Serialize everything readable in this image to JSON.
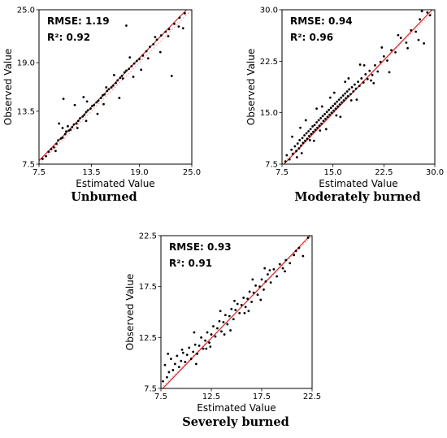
{
  "captions": [
    "Unburned",
    "Moderately burned",
    "Severely burned"
  ],
  "colors": {
    "points": "#000000",
    "fit_line": "#d62728",
    "identity_line": "#e79a9a"
  },
  "chart_data": [
    {
      "type": "scatter",
      "caption": "Unburned",
      "xlabel": "Estimated Value",
      "ylabel": "Observed Value",
      "xlim": [
        7.5,
        25.0
      ],
      "ylim": [
        7.5,
        25.0
      ],
      "ticks": [
        "7.5",
        "13.5",
        "19.0",
        "25.0"
      ],
      "stats": {
        "rmse": "RMSE: 1.19",
        "r2": "R²: 0.92"
      },
      "fit_line": [
        [
          7.5,
          7.9
        ],
        [
          25.0,
          25.6
        ]
      ],
      "identity_line": [
        [
          7.5,
          7.5
        ],
        [
          25.0,
          25.0
        ]
      ],
      "points": [
        [
          7.9,
          8.1
        ],
        [
          8.3,
          8.4
        ],
        [
          8.6,
          8.9
        ],
        [
          8.9,
          9.2
        ],
        [
          9.2,
          9.4
        ],
        [
          9.5,
          9.8
        ],
        [
          9.7,
          10.2
        ],
        [
          10.0,
          10.4
        ],
        [
          10.2,
          10.5
        ],
        [
          10.5,
          10.9
        ],
        [
          10.6,
          11.2
        ],
        [
          10.9,
          11.3
        ],
        [
          10.2,
          11.6
        ],
        [
          10.8,
          11.8
        ],
        [
          11.1,
          11.4
        ],
        [
          11.3,
          11.7
        ],
        [
          11.5,
          12.0
        ],
        [
          11.8,
          12.1
        ],
        [
          12.0,
          12.4
        ],
        [
          12.2,
          12.7
        ],
        [
          12.5,
          12.9
        ],
        [
          12.7,
          13.1
        ],
        [
          12.9,
          13.4
        ],
        [
          13.1,
          13.6
        ],
        [
          13.4,
          13.8
        ],
        [
          13.6,
          14.1
        ],
        [
          13.8,
          14.2
        ],
        [
          14.1,
          14.5
        ],
        [
          14.3,
          14.7
        ],
        [
          14.6,
          15.0
        ],
        [
          14.8,
          15.3
        ],
        [
          15.0,
          15.4
        ],
        [
          15.3,
          15.8
        ],
        [
          15.5,
          16.0
        ],
        [
          15.8,
          16.2
        ],
        [
          16.0,
          16.4
        ],
        [
          16.3,
          16.7
        ],
        [
          16.5,
          17.0
        ],
        [
          16.8,
          17.3
        ],
        [
          17.0,
          17.5
        ],
        [
          17.3,
          17.9
        ],
        [
          17.5,
          18.1
        ],
        [
          17.8,
          18.3
        ],
        [
          18.1,
          18.6
        ],
        [
          18.4,
          18.9
        ],
        [
          18.7,
          19.2
        ],
        [
          19.0,
          19.4
        ],
        [
          19.4,
          19.8
        ],
        [
          19.8,
          20.3
        ],
        [
          20.2,
          20.8
        ],
        [
          20.6,
          21.1
        ],
        [
          21.0,
          21.6
        ],
        [
          21.5,
          22.1
        ],
        [
          22.0,
          22.5
        ],
        [
          22.4,
          22.8
        ],
        [
          23.0,
          23.4
        ],
        [
          23.6,
          24.1
        ],
        [
          24.2,
          24.6
        ],
        [
          9.8,
          12.1
        ],
        [
          10.3,
          14.9
        ],
        [
          11.6,
          14.2
        ],
        [
          12.6,
          15.1
        ],
        [
          13.0,
          14.6
        ],
        [
          12.9,
          12.4
        ],
        [
          14.2,
          13.2
        ],
        [
          15.2,
          16.2
        ],
        [
          16.7,
          15.0
        ],
        [
          17.1,
          17.2
        ],
        [
          17.9,
          19.6
        ],
        [
          17.5,
          23.2
        ],
        [
          18.3,
          17.4
        ],
        [
          19.2,
          18.2
        ],
        [
          20.0,
          19.5
        ],
        [
          20.8,
          21.9
        ],
        [
          21.4,
          20.2
        ],
        [
          22.3,
          22.0
        ],
        [
          22.7,
          17.5
        ],
        [
          23.5,
          23.1
        ],
        [
          24.0,
          22.9
        ],
        [
          14.9,
          14.3
        ],
        [
          16.1,
          17.6
        ],
        [
          11.9,
          11.6
        ],
        [
          9.4,
          9.0
        ]
      ]
    },
    {
      "type": "scatter",
      "caption": "Moderately burned",
      "xlabel": "Estimated Value",
      "ylabel": "Observed Value",
      "xlim": [
        7.5,
        30.0
      ],
      "ylim": [
        7.5,
        30.0
      ],
      "ticks": [
        "7.5",
        "15.0",
        "22.5",
        "30.0"
      ],
      "stats": {
        "rmse": "RMSE: 0.94",
        "r2": "R²: 0.96"
      },
      "fit_line": [
        [
          7.5,
          7.2
        ],
        [
          30.0,
          30.4
        ]
      ],
      "identity_line": [
        [
          7.5,
          7.5
        ],
        [
          30.0,
          30.0
        ]
      ],
      "points": [
        [
          8.2,
          8.8
        ],
        [
          8.6,
          8.2
        ],
        [
          8.9,
          9.6
        ],
        [
          9.1,
          9.0
        ],
        [
          9.4,
          10.1
        ],
        [
          9.6,
          9.4
        ],
        [
          9.8,
          10.5
        ],
        [
          10.0,
          9.8
        ],
        [
          10.1,
          11.0
        ],
        [
          10.3,
          10.2
        ],
        [
          10.5,
          11.3
        ],
        [
          10.6,
          10.6
        ],
        [
          10.8,
          11.7
        ],
        [
          10.9,
          10.9
        ],
        [
          11.1,
          12.0
        ],
        [
          11.2,
          11.2
        ],
        [
          11.4,
          12.3
        ],
        [
          11.5,
          11.6
        ],
        [
          11.7,
          12.6
        ],
        [
          11.8,
          11.9
        ],
        [
          12.0,
          13.0
        ],
        [
          12.1,
          12.2
        ],
        [
          12.3,
          13.2
        ],
        [
          12.4,
          12.5
        ],
        [
          12.6,
          13.6
        ],
        [
          12.7,
          12.8
        ],
        [
          12.9,
          13.9
        ],
        [
          13.0,
          13.1
        ],
        [
          13.2,
          14.2
        ],
        [
          13.3,
          13.4
        ],
        [
          13.5,
          14.5
        ],
        [
          13.6,
          13.8
        ],
        [
          13.8,
          14.8
        ],
        [
          13.9,
          14.1
        ],
        [
          14.1,
          15.1
        ],
        [
          14.2,
          14.4
        ],
        [
          14.4,
          15.4
        ],
        [
          14.5,
          14.7
        ],
        [
          14.7,
          15.7
        ],
        [
          14.8,
          15.0
        ],
        [
          15.0,
          16.0
        ],
        [
          15.1,
          15.3
        ],
        [
          15.3,
          16.3
        ],
        [
          15.4,
          15.6
        ],
        [
          15.6,
          16.6
        ],
        [
          15.7,
          15.9
        ],
        [
          15.9,
          16.9
        ],
        [
          16.0,
          16.2
        ],
        [
          16.2,
          17.2
        ],
        [
          16.3,
          16.5
        ],
        [
          16.5,
          17.5
        ],
        [
          16.6,
          16.8
        ],
        [
          16.8,
          17.8
        ],
        [
          16.9,
          17.1
        ],
        [
          17.1,
          18.1
        ],
        [
          17.2,
          17.4
        ],
        [
          17.4,
          18.4
        ],
        [
          17.6,
          17.7
        ],
        [
          17.8,
          18.7
        ],
        [
          18.0,
          18.1
        ],
        [
          18.2,
          19.1
        ],
        [
          18.4,
          18.5
        ],
        [
          18.7,
          19.5
        ],
        [
          18.9,
          18.9
        ],
        [
          19.2,
          20.0
        ],
        [
          19.5,
          19.4
        ],
        [
          19.8,
          20.6
        ],
        [
          20.1,
          19.9
        ],
        [
          20.4,
          21.1
        ],
        [
          20.8,
          20.5
        ],
        [
          21.2,
          21.9
        ],
        [
          21.6,
          21.0
        ],
        [
          22.0,
          22.4
        ],
        [
          22.5,
          23.2
        ],
        [
          23.0,
          22.6
        ],
        [
          23.6,
          24.1
        ],
        [
          24.2,
          23.8
        ],
        [
          25.0,
          25.9
        ],
        [
          25.8,
          25.2
        ],
        [
          26.5,
          27.0
        ],
        [
          27.2,
          26.8
        ],
        [
          27.8,
          28.6
        ],
        [
          28.4,
          25.1
        ],
        [
          28.9,
          29.6
        ],
        [
          29.3,
          29.2
        ],
        [
          9.0,
          11.5
        ],
        [
          10.2,
          12.8
        ],
        [
          11.0,
          13.9
        ],
        [
          12.2,
          10.9
        ],
        [
          13.4,
          15.9
        ],
        [
          14.0,
          12.6
        ],
        [
          15.2,
          17.9
        ],
        [
          16.1,
          14.4
        ],
        [
          17.3,
          20.0
        ],
        [
          18.5,
          16.9
        ],
        [
          19.6,
          21.9
        ],
        [
          21.0,
          19.3
        ],
        [
          22.2,
          24.5
        ],
        [
          23.3,
          20.9
        ],
        [
          24.6,
          26.3
        ],
        [
          26.0,
          24.4
        ],
        [
          27.6,
          25.6
        ],
        [
          28.1,
          29.8
        ],
        [
          12.6,
          15.6
        ],
        [
          14.6,
          17.2
        ],
        [
          16.8,
          19.5
        ],
        [
          19.0,
          22.0
        ],
        [
          11.6,
          11.0
        ],
        [
          13.1,
          12.4
        ],
        [
          15.5,
          14.6
        ],
        [
          17.7,
          16.8
        ],
        [
          20.6,
          19.7
        ],
        [
          10.4,
          9.1
        ],
        [
          9.7,
          8.5
        ],
        [
          8.0,
          7.9
        ]
      ]
    },
    {
      "type": "scatter",
      "caption": "Severely burned",
      "xlabel": "Estimated Value",
      "ylabel": "Observed Value",
      "xlim": [
        7.5,
        22.5
      ],
      "ylim": [
        7.5,
        22.5
      ],
      "ticks": [
        "7.5",
        "12.5",
        "17.5",
        "22.5"
      ],
      "stats": {
        "rmse": "RMSE: 0.93",
        "r2": "R²: 0.91"
      },
      "fit_line": [
        [
          7.5,
          7.3
        ],
        [
          22.5,
          22.7
        ]
      ],
      "identity_line": [
        [
          7.5,
          7.5
        ],
        [
          22.5,
          22.5
        ]
      ],
      "points": [
        [
          7.7,
          8.2
        ],
        [
          7.9,
          9.8
        ],
        [
          8.1,
          8.6
        ],
        [
          8.3,
          9.1
        ],
        [
          8.5,
          10.4
        ],
        [
          8.7,
          9.3
        ],
        [
          8.9,
          9.9
        ],
        [
          9.1,
          10.7
        ],
        [
          9.3,
          9.6
        ],
        [
          9.5,
          10.2
        ],
        [
          9.7,
          11.0
        ],
        [
          9.9,
          10.1
        ],
        [
          10.1,
          10.8
        ],
        [
          10.3,
          11.5
        ],
        [
          10.5,
          10.4
        ],
        [
          10.7,
          11.1
        ],
        [
          10.9,
          11.8
        ],
        [
          11.1,
          10.9
        ],
        [
          11.3,
          11.7
        ],
        [
          11.5,
          12.5
        ],
        [
          11.7,
          11.4
        ],
        [
          11.9,
          12.2
        ],
        [
          12.1,
          13.0
        ],
        [
          12.3,
          12.0
        ],
        [
          12.5,
          12.8
        ],
        [
          12.7,
          13.6
        ],
        [
          12.9,
          12.6
        ],
        [
          13.1,
          13.4
        ],
        [
          13.3,
          14.1
        ],
        [
          13.5,
          13.1
        ],
        [
          13.7,
          14.0
        ],
        [
          13.9,
          14.7
        ],
        [
          14.1,
          13.8
        ],
        [
          14.3,
          14.6
        ],
        [
          14.5,
          15.3
        ],
        [
          14.7,
          14.3
        ],
        [
          14.9,
          15.2
        ],
        [
          15.1,
          15.8
        ],
        [
          15.3,
          14.9
        ],
        [
          15.5,
          15.7
        ],
        [
          15.7,
          16.4
        ],
        [
          15.9,
          15.5
        ],
        [
          16.1,
          16.3
        ],
        [
          16.3,
          17.0
        ],
        [
          16.5,
          16.0
        ],
        [
          16.7,
          16.9
        ],
        [
          16.9,
          17.6
        ],
        [
          17.1,
          16.7
        ],
        [
          17.3,
          17.5
        ],
        [
          17.5,
          18.2
        ],
        [
          17.7,
          17.2
        ],
        [
          17.9,
          18.0
        ],
        [
          18.1,
          18.7
        ],
        [
          18.4,
          17.9
        ],
        [
          18.7,
          19.2
        ],
        [
          19.0,
          18.5
        ],
        [
          19.3,
          19.7
        ],
        [
          19.6,
          19.3
        ],
        [
          19.9,
          20.1
        ],
        [
          20.3,
          19.8
        ],
        [
          20.7,
          20.6
        ],
        [
          21.2,
          21.3
        ],
        [
          21.6,
          20.5
        ],
        [
          22.1,
          22.3
        ],
        [
          8.2,
          10.9
        ],
        [
          9.6,
          11.3
        ],
        [
          10.8,
          13.0
        ],
        [
          12.0,
          11.4
        ],
        [
          13.4,
          15.1
        ],
        [
          14.4,
          13.2
        ],
        [
          15.8,
          14.9
        ],
        [
          16.6,
          18.2
        ],
        [
          17.8,
          19.3
        ],
        [
          18.3,
          19.1
        ],
        [
          19.8,
          19.0
        ],
        [
          20.9,
          21.0
        ],
        [
          11.0,
          9.9
        ],
        [
          12.4,
          11.6
        ],
        [
          13.8,
          12.8
        ],
        [
          14.8,
          16.1
        ],
        [
          16.2,
          15.1
        ],
        [
          17.4,
          16.2
        ]
      ]
    }
  ]
}
